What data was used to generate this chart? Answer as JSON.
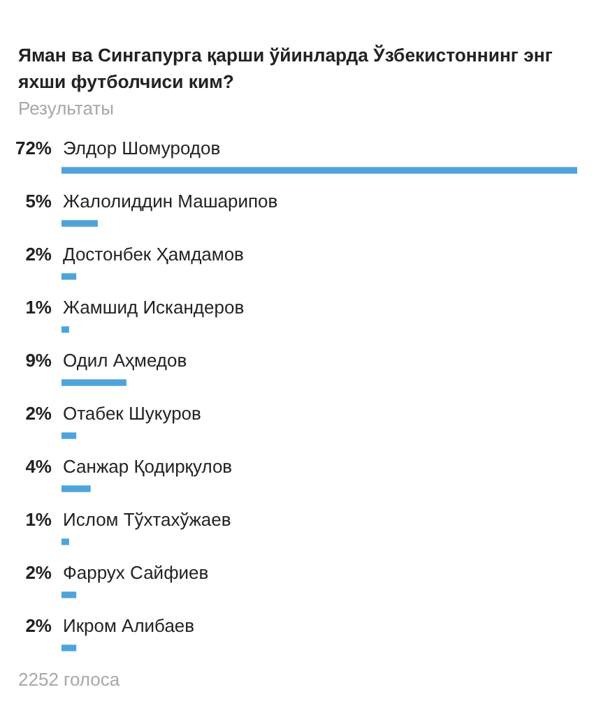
{
  "chart_data": {
    "type": "bar",
    "orientation": "horizontal",
    "title": "Яман ва Сингапурга қарши ўйинларда Ўзбекистоннинг энг яхши футболчиси ким?",
    "subtitle": "Результаты",
    "categories": [
      "Элдор Шомуродов",
      "Жалолиддин Машарипов",
      "Достонбек Ҳамдамов",
      "Жамшид Искандеров",
      "Одил Аҳмедов",
      "Отабек Шукуров",
      "Санжар Қодирқулов",
      "Ислом Тўхтахўжаев",
      "Фаррух Сайфиев",
      "Икром Алибаев"
    ],
    "values": [
      72,
      5,
      2,
      1,
      9,
      2,
      4,
      1,
      2,
      2
    ],
    "value_labels": [
      "72%",
      "5%",
      "2%",
      "1%",
      "9%",
      "2%",
      "4%",
      "1%",
      "2%",
      "2%"
    ],
    "color": "#4ea4da",
    "tick_labels": "y",
    "annotations": [
      "2252 голоса"
    ]
  }
}
